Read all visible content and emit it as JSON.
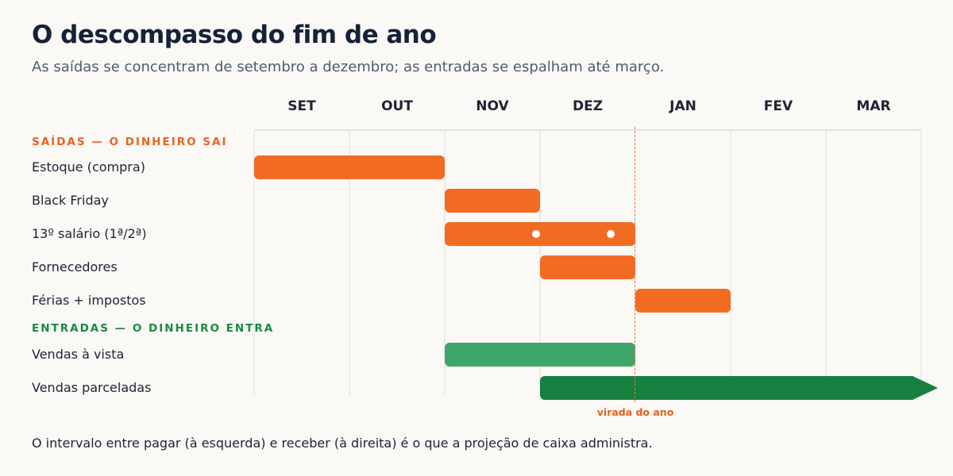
{
  "title": "O descompasso do fim de ano",
  "subtitle": "As saídas se concentram de setembro a dezembro; as entradas se espalham até março.",
  "months": [
    "SET",
    "OUT",
    "NOV",
    "DEZ",
    "JAN",
    "FEV",
    "MAR"
  ],
  "sections": {
    "outflows": "SAÍDAS — O DINHEIRO SAI",
    "inflows": "ENTRADAS — O DINHEIRO ENTRA"
  },
  "rows": [
    {
      "label": "Estoque (compra)",
      "type": "outflow",
      "start": "SET",
      "end": "OUT"
    },
    {
      "label": "Black Friday",
      "type": "outflow",
      "start": "NOV",
      "end": "NOV"
    },
    {
      "label": "13º salário (1ª/2ª)",
      "type": "outflow",
      "start": "NOV",
      "end": "DEZ",
      "markers": 2
    },
    {
      "label": "Fornecedores",
      "type": "outflow",
      "start": "DEZ",
      "end": "DEZ"
    },
    {
      "label": "Férias + impostos",
      "type": "outflow",
      "start": "JAN",
      "end": "JAN"
    },
    {
      "label": "Vendas à vista",
      "type": "inflow",
      "start": "NOV",
      "end": "DEZ"
    },
    {
      "label": "Vendas parceladas",
      "type": "inflow",
      "start": "DEZ",
      "end": "MAR",
      "continues": true
    }
  ],
  "year_marker": "virada do ano",
  "footer": "O intervalo entre pagar (à esquerda) e receber (à direita) é o que a projeção de caixa administra.",
  "colors": {
    "outflow": "#f26b22",
    "inflow_cash": "#3fa66a",
    "inflow_installments": "#168040",
    "outflow_section": "#e8641f",
    "inflow_section": "#178a43"
  }
}
